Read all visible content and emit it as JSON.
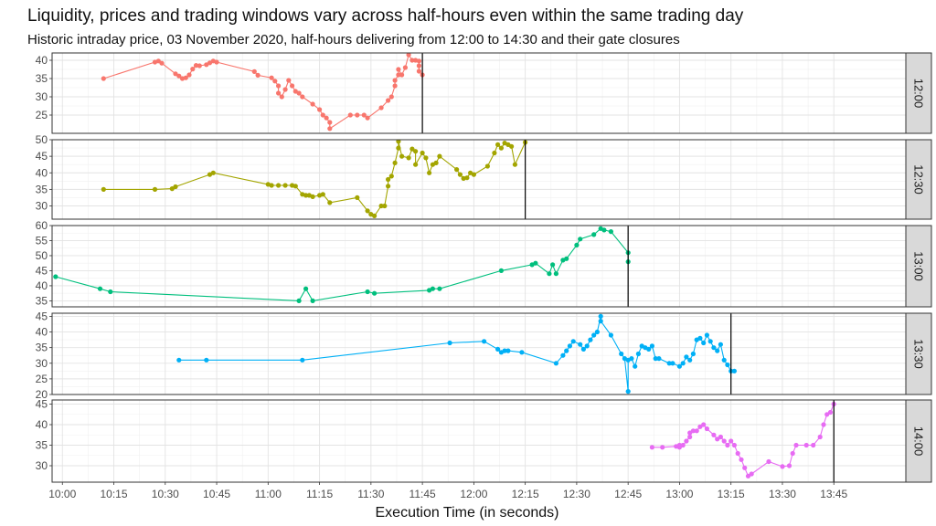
{
  "chart_data": {
    "type": "line",
    "title": "Liquidity, prices and trading windows vary across half-hours even within the same trading day",
    "subtitle": "Historic intraday price, 03 November 2020, half-hours delivering from 12:00 to 14:30 and their gate closures",
    "xlabel": "Execution Time (in seconds)",
    "ylabel": "",
    "grid": true,
    "legend": "none",
    "x_ticks": [
      "10:00",
      "10:15",
      "10:30",
      "10:45",
      "11:00",
      "11:15",
      "11:30",
      "11:45",
      "12:00",
      "12:15",
      "12:30",
      "12:45",
      "13:00",
      "13:15",
      "13:30",
      "13:45"
    ],
    "xlim": [
      "09:57",
      "14:06"
    ],
    "panels": [
      {
        "strip": "12:00",
        "color": "#F8766D",
        "ylim": [
          20,
          42
        ],
        "y_ticks": [
          25,
          30,
          35,
          40
        ],
        "gate_closure": "11:45",
        "points": [
          [
            "10:12",
            35.0
          ],
          [
            "10:27",
            39.5
          ],
          [
            "10:28",
            39.8
          ],
          [
            "10:29",
            39.2
          ],
          [
            "10:33",
            36.3
          ],
          [
            "10:34",
            35.7
          ],
          [
            "10:35",
            35.0
          ],
          [
            "10:36",
            35.2
          ],
          [
            "10:37",
            36.0
          ],
          [
            "10:38",
            37.6
          ],
          [
            "10:39",
            38.6
          ],
          [
            "10:40",
            38.5
          ],
          [
            "10:42",
            38.8
          ],
          [
            "10:43",
            39.3
          ],
          [
            "10:44",
            39.8
          ],
          [
            "10:45",
            39.5
          ],
          [
            "10:56",
            36.9
          ],
          [
            "10:57",
            35.9
          ],
          [
            "11:01",
            35.2
          ],
          [
            "11:02",
            34.3
          ],
          [
            "11:03",
            33.0
          ],
          [
            "11:03",
            31.0
          ],
          [
            "11:04",
            30.0
          ],
          [
            "11:05",
            32.0
          ],
          [
            "11:06",
            34.5
          ],
          [
            "11:07",
            33.0
          ],
          [
            "11:08",
            31.5
          ],
          [
            "11:09",
            31.0
          ],
          [
            "11:10",
            30.0
          ],
          [
            "11:13",
            28.0
          ],
          [
            "11:15",
            26.5
          ],
          [
            "11:16",
            25.0
          ],
          [
            "11:17",
            24.2
          ],
          [
            "11:18",
            23.0
          ],
          [
            "11:18",
            21.3
          ],
          [
            "11:24",
            25.0
          ],
          [
            "11:26",
            25.0
          ],
          [
            "11:28",
            25.0
          ],
          [
            "11:29",
            24.2
          ],
          [
            "11:33",
            27.0
          ],
          [
            "11:35",
            29.0
          ],
          [
            "11:36",
            30.0
          ],
          [
            "11:37",
            33.0
          ],
          [
            "11:37",
            34.5
          ],
          [
            "11:38",
            36.0
          ],
          [
            "11:38",
            37.5
          ],
          [
            "11:39",
            36.0
          ],
          [
            "11:40",
            38.0
          ],
          [
            "11:41",
            41.5
          ],
          [
            "11:42",
            40.0
          ],
          [
            "11:43",
            40.0
          ],
          [
            "11:44",
            39.8
          ],
          [
            "11:44",
            38.5
          ],
          [
            "11:44",
            37.0
          ],
          [
            "11:45",
            36.0
          ]
        ]
      },
      {
        "strip": "12:30",
        "color": "#A3A500",
        "ylim": [
          26,
          50
        ],
        "y_ticks": [
          30,
          35,
          40,
          45,
          50
        ],
        "gate_closure": "12:15",
        "points": [
          [
            "10:12",
            35.0
          ],
          [
            "10:27",
            35.0
          ],
          [
            "10:32",
            35.2
          ],
          [
            "10:33",
            35.8
          ],
          [
            "10:43",
            39.5
          ],
          [
            "10:44",
            40.0
          ],
          [
            "11:00",
            36.5
          ],
          [
            "11:01",
            36.2
          ],
          [
            "11:03",
            36.2
          ],
          [
            "11:05",
            36.2
          ],
          [
            "11:07",
            36.2
          ],
          [
            "11:08",
            36.0
          ],
          [
            "11:10",
            33.5
          ],
          [
            "11:11",
            33.2
          ],
          [
            "11:12",
            33.2
          ],
          [
            "11:13",
            32.8
          ],
          [
            "11:15",
            33.2
          ],
          [
            "11:16",
            33.5
          ],
          [
            "11:18",
            31.0
          ],
          [
            "11:26",
            32.5
          ],
          [
            "11:29",
            28.5
          ],
          [
            "11:30",
            27.5
          ],
          [
            "11:31",
            27.0
          ],
          [
            "11:33",
            30.0
          ],
          [
            "11:34",
            30.0
          ],
          [
            "11:35",
            36.0
          ],
          [
            "11:35",
            38.0
          ],
          [
            "11:36",
            39.0
          ],
          [
            "11:37",
            43.0
          ],
          [
            "11:38",
            47.5
          ],
          [
            "11:38",
            49.5
          ],
          [
            "11:39",
            45.0
          ],
          [
            "11:41",
            44.5
          ],
          [
            "11:42",
            47.2
          ],
          [
            "11:43",
            46.5
          ],
          [
            "11:43",
            42.5
          ],
          [
            "11:45",
            46.0
          ],
          [
            "11:46",
            44.5
          ],
          [
            "11:47",
            40.0
          ],
          [
            "11:48",
            42.5
          ],
          [
            "11:49",
            43.0
          ],
          [
            "11:50",
            45.0
          ],
          [
            "11:55",
            41.0
          ],
          [
            "11:56",
            39.5
          ],
          [
            "11:57",
            38.3
          ],
          [
            "11:58",
            38.5
          ],
          [
            "11:59",
            40.0
          ],
          [
            "12:00",
            39.5
          ],
          [
            "12:04",
            42.0
          ],
          [
            "12:06",
            46.0
          ],
          [
            "12:07",
            48.5
          ],
          [
            "12:08",
            47.5
          ],
          [
            "12:09",
            49.0
          ],
          [
            "12:10",
            48.5
          ],
          [
            "12:11",
            48.0
          ],
          [
            "12:12",
            42.5
          ],
          [
            "12:15",
            49.2
          ]
        ]
      },
      {
        "strip": "13:00",
        "color": "#00BF7D",
        "ylim": [
          33,
          60
        ],
        "y_ticks": [
          35,
          40,
          45,
          50,
          55,
          60
        ],
        "gate_closure": "12:45",
        "points": [
          [
            "09:58",
            43.0
          ],
          [
            "10:11",
            39.0
          ],
          [
            "10:14",
            38.0
          ],
          [
            "11:09",
            35.0
          ],
          [
            "11:11",
            39.0
          ],
          [
            "11:13",
            35.0
          ],
          [
            "11:29",
            38.0
          ],
          [
            "11:31",
            37.5
          ],
          [
            "11:47",
            38.5
          ],
          [
            "11:48",
            39.0
          ],
          [
            "11:50",
            39.0
          ],
          [
            "12:08",
            45.0
          ],
          [
            "12:17",
            47.0
          ],
          [
            "12:18",
            47.5
          ],
          [
            "12:22",
            44.0
          ],
          [
            "12:23",
            47.0
          ],
          [
            "12:24",
            44.0
          ],
          [
            "12:26",
            48.5
          ],
          [
            "12:27",
            49.0
          ],
          [
            "12:30",
            53.5
          ],
          [
            "12:31",
            55.5
          ],
          [
            "12:35",
            57.0
          ],
          [
            "12:37",
            59.0
          ],
          [
            "12:38",
            58.5
          ],
          [
            "12:40",
            58.0
          ],
          [
            "12:45",
            51.0
          ],
          [
            "12:45",
            48.0
          ]
        ]
      },
      {
        "strip": "13:30",
        "color": "#00B0F6",
        "ylim": [
          20,
          46
        ],
        "y_ticks": [
          20,
          25,
          30,
          35,
          40,
          45
        ],
        "gate_closure": "13:15",
        "points": [
          [
            "10:34",
            31.0
          ],
          [
            "10:42",
            31.0
          ],
          [
            "11:10",
            31.0
          ],
          [
            "11:53",
            36.5
          ],
          [
            "12:03",
            37.0
          ],
          [
            "12:07",
            34.5
          ],
          [
            "12:08",
            33.5
          ],
          [
            "12:09",
            34.0
          ],
          [
            "12:10",
            34.0
          ],
          [
            "12:14",
            33.5
          ],
          [
            "12:24",
            30.0
          ],
          [
            "12:26",
            32.5
          ],
          [
            "12:27",
            34.0
          ],
          [
            "12:28",
            35.5
          ],
          [
            "12:29",
            37.0
          ],
          [
            "12:31",
            36.0
          ],
          [
            "12:32",
            34.5
          ],
          [
            "12:33",
            35.5
          ],
          [
            "12:34",
            37.5
          ],
          [
            "12:35",
            39.0
          ],
          [
            "12:36",
            40.0
          ],
          [
            "12:37",
            45.0
          ],
          [
            "12:37",
            43.5
          ],
          [
            "12:40",
            39.0
          ],
          [
            "12:43",
            33.0
          ],
          [
            "12:44",
            31.5
          ],
          [
            "12:45",
            21.0
          ],
          [
            "12:45",
            31.0
          ],
          [
            "12:46",
            31.5
          ],
          [
            "12:47",
            29.0
          ],
          [
            "12:48",
            33.0
          ],
          [
            "12:49",
            35.5
          ],
          [
            "12:50",
            35.0
          ],
          [
            "12:51",
            34.5
          ],
          [
            "12:52",
            35.5
          ],
          [
            "12:53",
            31.5
          ],
          [
            "12:54",
            31.5
          ],
          [
            "12:57",
            30.0
          ],
          [
            "12:58",
            30.0
          ],
          [
            "13:00",
            29.0
          ],
          [
            "13:01",
            30.0
          ],
          [
            "13:02",
            32.0
          ],
          [
            "13:03",
            31.0
          ],
          [
            "13:04",
            33.0
          ],
          [
            "13:05",
            37.5
          ],
          [
            "13:06",
            38.0
          ],
          [
            "13:07",
            36.5
          ],
          [
            "13:08",
            39.0
          ],
          [
            "13:09",
            37.0
          ],
          [
            "13:10",
            35.0
          ],
          [
            "13:11",
            34.0
          ],
          [
            "13:12",
            36.0
          ],
          [
            "13:13",
            31.0
          ],
          [
            "13:14",
            29.5
          ],
          [
            "13:15",
            27.5
          ],
          [
            "13:16",
            27.5
          ]
        ]
      },
      {
        "strip": "14:00",
        "color": "#E76BF3",
        "ylim": [
          26,
          46
        ],
        "y_ticks": [
          30,
          35,
          40,
          45
        ],
        "gate_closure": "13:45",
        "points": [
          [
            "12:52",
            34.5
          ],
          [
            "12:55",
            34.5
          ],
          [
            "12:59",
            34.7
          ],
          [
            "13:00",
            34.5
          ],
          [
            "13:00",
            35.0
          ],
          [
            "13:01",
            35.0
          ],
          [
            "13:02",
            36.0
          ],
          [
            "13:03",
            37.0
          ],
          [
            "13:03",
            38.0
          ],
          [
            "13:04",
            38.5
          ],
          [
            "13:05",
            38.5
          ],
          [
            "13:06",
            39.5
          ],
          [
            "13:07",
            40.0
          ],
          [
            "13:08",
            39.0
          ],
          [
            "13:10",
            37.5
          ],
          [
            "13:11",
            36.5
          ],
          [
            "13:12",
            37.0
          ],
          [
            "13:13",
            36.0
          ],
          [
            "13:14",
            35.0
          ],
          [
            "13:15",
            36.0
          ],
          [
            "13:16",
            35.0
          ],
          [
            "13:17",
            33.0
          ],
          [
            "13:18",
            31.5
          ],
          [
            "13:19",
            29.5
          ],
          [
            "13:20",
            27.5
          ],
          [
            "13:21",
            28.0
          ],
          [
            "13:26",
            31.0
          ],
          [
            "13:30",
            29.8
          ],
          [
            "13:32",
            30.0
          ],
          [
            "13:33",
            33.0
          ],
          [
            "13:34",
            35.0
          ],
          [
            "13:37",
            35.0
          ],
          [
            "13:39",
            35.0
          ],
          [
            "13:41",
            37.0
          ],
          [
            "13:42",
            40.0
          ],
          [
            "13:43",
            42.5
          ],
          [
            "13:44",
            43.0
          ],
          [
            "13:45",
            45.0
          ]
        ]
      }
    ]
  }
}
